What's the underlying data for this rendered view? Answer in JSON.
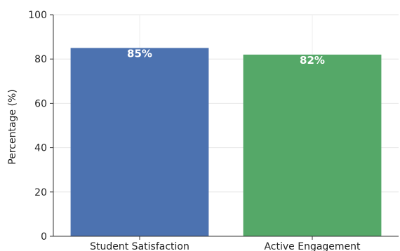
{
  "chart_data": {
    "type": "bar",
    "categories": [
      "Student Satisfaction",
      "Active Engagement"
    ],
    "values": [
      85,
      82
    ],
    "data_labels": [
      "85%",
      "82%"
    ],
    "colors": [
      "#4c72b0",
      "#55a868"
    ],
    "ylabel": "Percentage (%)",
    "ylim": [
      0,
      100
    ],
    "yticks": [
      0,
      20,
      40,
      60,
      80,
      100
    ],
    "grid": true
  }
}
